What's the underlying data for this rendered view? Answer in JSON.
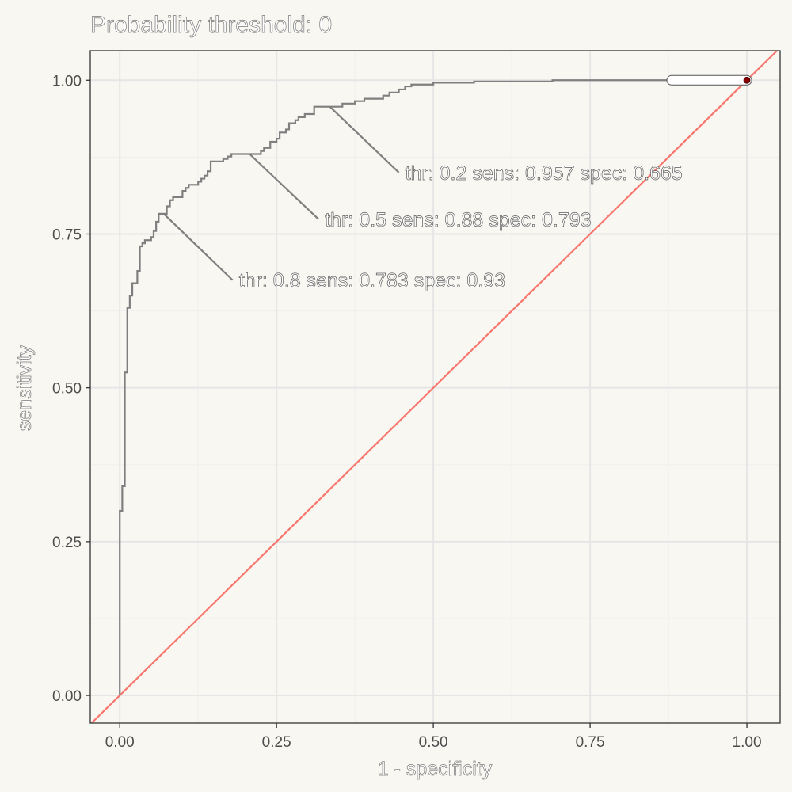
{
  "chart_data": {
    "type": "line",
    "title": "Probability threshold: 0",
    "xlabel": "1 - specificity",
    "ylabel": "sensitivity",
    "xlim": [
      -0.047,
      1.053
    ],
    "ylim": [
      -0.045,
      1.048
    ],
    "x_ticks": [
      0,
      0.25,
      0.5,
      0.75,
      1
    ],
    "x_tick_labels": [
      "0.00",
      "0.25",
      "0.50",
      "0.75",
      "1.00"
    ],
    "y_ticks": [
      0,
      0.25,
      0.5,
      0.75,
      1
    ],
    "y_tick_labels": [
      "0.00",
      "0.25",
      "0.50",
      "0.75",
      "1.00"
    ],
    "grid": true,
    "colors": {
      "roc_curve": "#7f7f7f",
      "diagonal": "#f8766d",
      "highlight_point": "#8b0000",
      "background": "#f9f7f1",
      "panel_border": "#333333",
      "grid_major": "#e6e6e6",
      "grid_minor": "#efefef"
    },
    "series": [
      {
        "type": "step",
        "points": [
          [
            0.0,
            0.0
          ],
          [
            0.0,
            0.3
          ],
          [
            0.004,
            0.3
          ],
          [
            0.004,
            0.34
          ],
          [
            0.008,
            0.34
          ],
          [
            0.008,
            0.525
          ],
          [
            0.012,
            0.525
          ],
          [
            0.012,
            0.63
          ],
          [
            0.016,
            0.63
          ],
          [
            0.016,
            0.65
          ],
          [
            0.02,
            0.65
          ],
          [
            0.02,
            0.67
          ],
          [
            0.028,
            0.67
          ],
          [
            0.028,
            0.69
          ],
          [
            0.032,
            0.69
          ],
          [
            0.032,
            0.73
          ],
          [
            0.036,
            0.73
          ],
          [
            0.036,
            0.735
          ],
          [
            0.04,
            0.735
          ],
          [
            0.04,
            0.74
          ],
          [
            0.05,
            0.74
          ],
          [
            0.05,
            0.745
          ],
          [
            0.054,
            0.745
          ],
          [
            0.054,
            0.755
          ],
          [
            0.058,
            0.755
          ],
          [
            0.058,
            0.77
          ],
          [
            0.062,
            0.77
          ],
          [
            0.062,
            0.783
          ],
          [
            0.075,
            0.783
          ],
          [
            0.075,
            0.795
          ],
          [
            0.08,
            0.795
          ],
          [
            0.08,
            0.805
          ],
          [
            0.085,
            0.805
          ],
          [
            0.085,
            0.81
          ],
          [
            0.1,
            0.81
          ],
          [
            0.1,
            0.82
          ],
          [
            0.105,
            0.82
          ],
          [
            0.105,
            0.825
          ],
          [
            0.11,
            0.825
          ],
          [
            0.11,
            0.83
          ],
          [
            0.125,
            0.83
          ],
          [
            0.125,
            0.835
          ],
          [
            0.13,
            0.835
          ],
          [
            0.13,
            0.84
          ],
          [
            0.135,
            0.84
          ],
          [
            0.135,
            0.845
          ],
          [
            0.14,
            0.845
          ],
          [
            0.14,
            0.852
          ],
          [
            0.145,
            0.852
          ],
          [
            0.145,
            0.868
          ],
          [
            0.165,
            0.868
          ],
          [
            0.165,
            0.872
          ],
          [
            0.172,
            0.872
          ],
          [
            0.172,
            0.876
          ],
          [
            0.178,
            0.876
          ],
          [
            0.178,
            0.88
          ],
          [
            0.225,
            0.88
          ],
          [
            0.225,
            0.885
          ],
          [
            0.23,
            0.885
          ],
          [
            0.23,
            0.89
          ],
          [
            0.24,
            0.89
          ],
          [
            0.24,
            0.9
          ],
          [
            0.25,
            0.9
          ],
          [
            0.25,
            0.905
          ],
          [
            0.255,
            0.905
          ],
          [
            0.255,
            0.915
          ],
          [
            0.265,
            0.915
          ],
          [
            0.265,
            0.92
          ],
          [
            0.27,
            0.92
          ],
          [
            0.27,
            0.93
          ],
          [
            0.28,
            0.93
          ],
          [
            0.28,
            0.935
          ],
          [
            0.285,
            0.935
          ],
          [
            0.285,
            0.94
          ],
          [
            0.295,
            0.94
          ],
          [
            0.295,
            0.945
          ],
          [
            0.31,
            0.945
          ],
          [
            0.31,
            0.957
          ],
          [
            0.355,
            0.957
          ],
          [
            0.355,
            0.962
          ],
          [
            0.375,
            0.962
          ],
          [
            0.375,
            0.966
          ],
          [
            0.39,
            0.966
          ],
          [
            0.39,
            0.97
          ],
          [
            0.42,
            0.97
          ],
          [
            0.42,
            0.975
          ],
          [
            0.43,
            0.975
          ],
          [
            0.43,
            0.98
          ],
          [
            0.445,
            0.98
          ],
          [
            0.445,
            0.985
          ],
          [
            0.455,
            0.985
          ],
          [
            0.455,
            0.99
          ],
          [
            0.465,
            0.99
          ],
          [
            0.465,
            0.993
          ],
          [
            0.5,
            0.993
          ],
          [
            0.5,
            0.996
          ],
          [
            0.565,
            0.996
          ],
          [
            0.565,
            0.998
          ],
          [
            0.69,
            0.998
          ],
          [
            0.69,
            1.0
          ],
          [
            1.0,
            1.0
          ]
        ]
      }
    ],
    "reference_line": {
      "from": [
        0,
        0
      ],
      "to": [
        1,
        1
      ]
    },
    "threshold_marker": {
      "from": [
        0.88,
        1.0
      ],
      "to": [
        1.0,
        1.0
      ],
      "point": [
        1.0,
        1.0
      ]
    },
    "annotations": [
      {
        "text": "thr:  0.2 sens: 0.957 spec: 0.665",
        "point": [
          0.335,
          0.957
        ],
        "label_at": [
          0.445,
          0.85
        ]
      },
      {
        "text": "thr:  0.5 sens: 0.88 spec: 0.793",
        "point": [
          0.207,
          0.88
        ],
        "label_at": [
          0.317,
          0.774
        ]
      },
      {
        "text": "thr:  0.8 sens: 0.783 spec: 0.93",
        "point": [
          0.07,
          0.783
        ],
        "label_at": [
          0.18,
          0.675
        ]
      }
    ]
  }
}
